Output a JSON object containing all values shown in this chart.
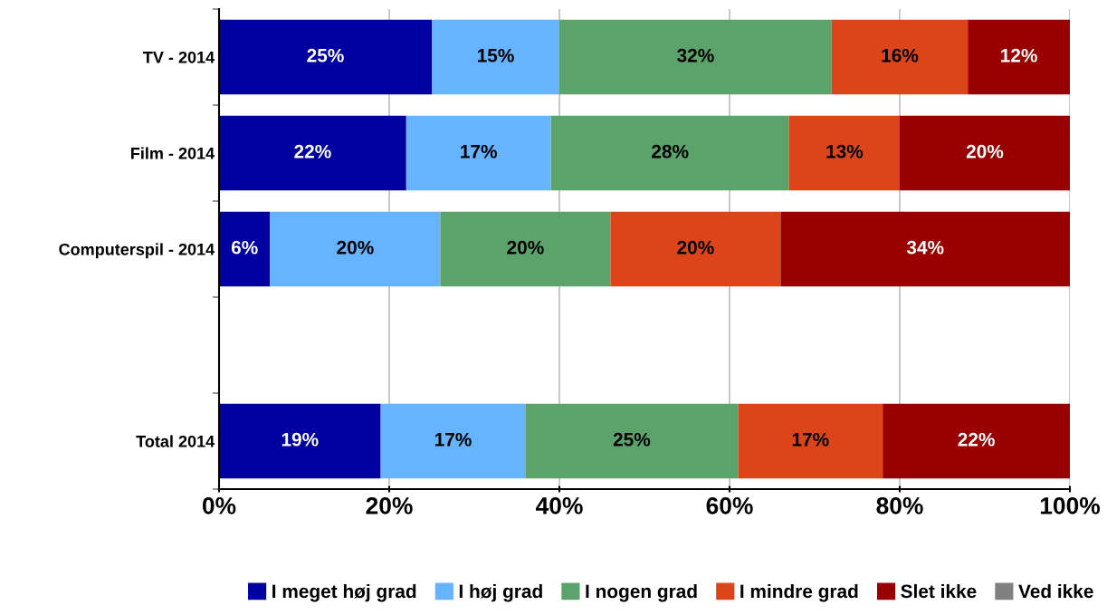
{
  "chart_data": {
    "type": "bar",
    "orientation": "horizontal",
    "stacked": true,
    "categories": [
      "TV - 2014",
      "Film - 2014",
      "Computerspil - 2014",
      null,
      "Total 2014"
    ],
    "series": [
      {
        "name": "I meget høj grad",
        "color": "#0000a0",
        "values": [
          25,
          22,
          6,
          null,
          19
        ],
        "value_labels": [
          "25%",
          "22%",
          "6%",
          null,
          "19%"
        ]
      },
      {
        "name": "I høj grad",
        "color": "#66b3ff",
        "values": [
          15,
          17,
          20,
          null,
          17
        ],
        "value_labels": [
          "15%",
          "17%",
          "20%",
          null,
          "17%"
        ]
      },
      {
        "name": "I nogen grad",
        "color": "#5ba36a",
        "values": [
          32,
          28,
          20,
          null,
          25
        ],
        "value_labels": [
          "32%",
          "28%",
          "20%",
          null,
          "25%"
        ]
      },
      {
        "name": "I mindre grad",
        "color": "#dc4519",
        "values": [
          16,
          13,
          20,
          null,
          17
        ],
        "value_labels": [
          "16%",
          "13%",
          "20%",
          null,
          "17%"
        ]
      },
      {
        "name": "Slet ikke",
        "color": "#990000",
        "values": [
          12,
          20,
          34,
          null,
          22
        ],
        "value_labels": [
          "12%",
          "20%",
          "34%",
          null,
          "22%"
        ]
      },
      {
        "name": "Ved ikke",
        "color": "#808080",
        "values": [
          null,
          null,
          null,
          null,
          null
        ]
      }
    ],
    "xlim": [
      0,
      100
    ],
    "xticks": [
      {
        "value": 0,
        "label": "0%"
      },
      {
        "value": 20,
        "label": "20%"
      },
      {
        "value": 40,
        "label": "40%"
      },
      {
        "value": 60,
        "label": "60%"
      },
      {
        "value": 80,
        "label": "80%"
      },
      {
        "value": 100,
        "label": "100%"
      }
    ],
    "grid": "x",
    "legend": "bottom"
  }
}
